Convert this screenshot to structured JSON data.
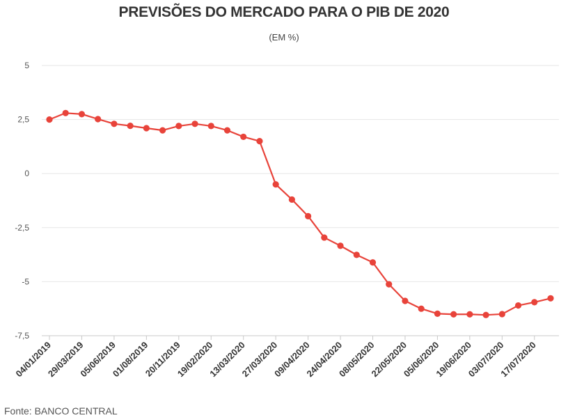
{
  "chart_data": {
    "type": "line",
    "title": "PREVISÕES DO MERCADO PARA O PIB DE 2020",
    "subtitle": "(EM %)",
    "xlabel": "",
    "ylabel": "",
    "ylim": [
      -7.5,
      5
    ],
    "yticks": [
      "5",
      "2,5",
      "0",
      "-2,5",
      "-5",
      "-7,5"
    ],
    "ytick_values": [
      5,
      2.5,
      0,
      -2.5,
      -5,
      -7.5
    ],
    "xtick_labels": [
      "04/01/2019",
      "29/03/2019",
      "05/06/2019",
      "01/08/2019",
      "20/11/2019",
      "19/02/2020",
      "13/03/2020",
      "27/03/2020",
      "09/04/2020",
      "24/04/2020",
      "08/05/2020",
      "22/05/2020",
      "05/06/2020",
      "19/06/2020",
      "03/07/2020",
      "17/07/2020"
    ],
    "grid": true,
    "series": [
      {
        "name": "",
        "color": "#e8433a",
        "values": [
          2.5,
          2.8,
          2.75,
          2.52,
          2.3,
          2.21,
          2.1,
          2.0,
          2.2,
          2.3,
          2.2,
          2.0,
          1.7,
          1.5,
          -0.5,
          -1.2,
          -1.97,
          -2.96,
          -3.34,
          -3.76,
          -4.11,
          -5.12,
          -5.89,
          -6.25,
          -6.48,
          -6.51,
          -6.51,
          -6.54,
          -6.5,
          -6.1,
          -5.95,
          -5.77
        ]
      }
    ]
  },
  "source": "Fonte: BANCO CENTRAL"
}
